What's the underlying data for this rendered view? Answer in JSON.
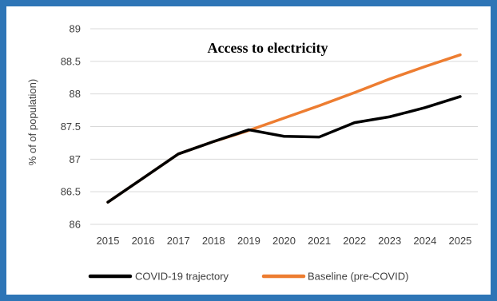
{
  "chart_data": {
    "type": "line",
    "title": "Access to electricity",
    "xlabel": "",
    "ylabel": "% of  of population)",
    "ylim": [
      86,
      89
    ],
    "yticks": [
      "86",
      "86.5",
      "87",
      "87.5",
      "88",
      "88.5",
      "89"
    ],
    "x": [
      "2015",
      "2016",
      "2017",
      "2018",
      "2019",
      "2020",
      "2021",
      "2022",
      "2023",
      "2024",
      "2025"
    ],
    "grid": "horizontal",
    "legend_position": "bottom",
    "series": [
      {
        "name": "COVID-19 trajectory",
        "color": "#000000",
        "values": [
          86.34,
          86.71,
          87.08,
          87.27,
          87.45,
          87.35,
          87.34,
          87.56,
          87.65,
          87.79,
          87.96
        ]
      },
      {
        "name": "Baseline (pre-COVID)",
        "color": "#ed7d31",
        "values": [
          86.34,
          86.71,
          87.08,
          87.27,
          87.44,
          87.63,
          87.82,
          88.02,
          88.23,
          88.42,
          88.6
        ]
      }
    ]
  }
}
